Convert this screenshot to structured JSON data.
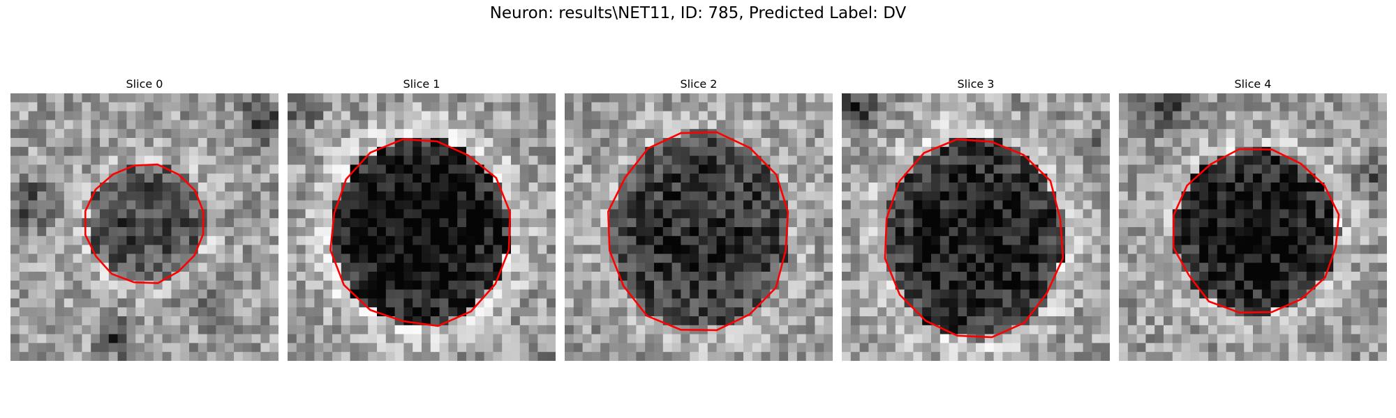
{
  "figure": {
    "title": "Neuron: results\\NET11, ID: 785, Predicted Label: DV",
    "contour_color": "#ff0000"
  },
  "panels": [
    {
      "title": "Slice 0",
      "image": "grayscale-microscopy-patch",
      "roi": "red-outline"
    },
    {
      "title": "Slice 1",
      "image": "grayscale-microscopy-patch",
      "roi": "red-outline"
    },
    {
      "title": "Slice 2",
      "image": "grayscale-microscopy-patch",
      "roi": "red-outline"
    },
    {
      "title": "Slice 3",
      "image": "grayscale-microscopy-patch",
      "roi": "red-outline"
    },
    {
      "title": "Slice 4",
      "image": "grayscale-microscopy-patch",
      "roi": "red-outline"
    }
  ]
}
